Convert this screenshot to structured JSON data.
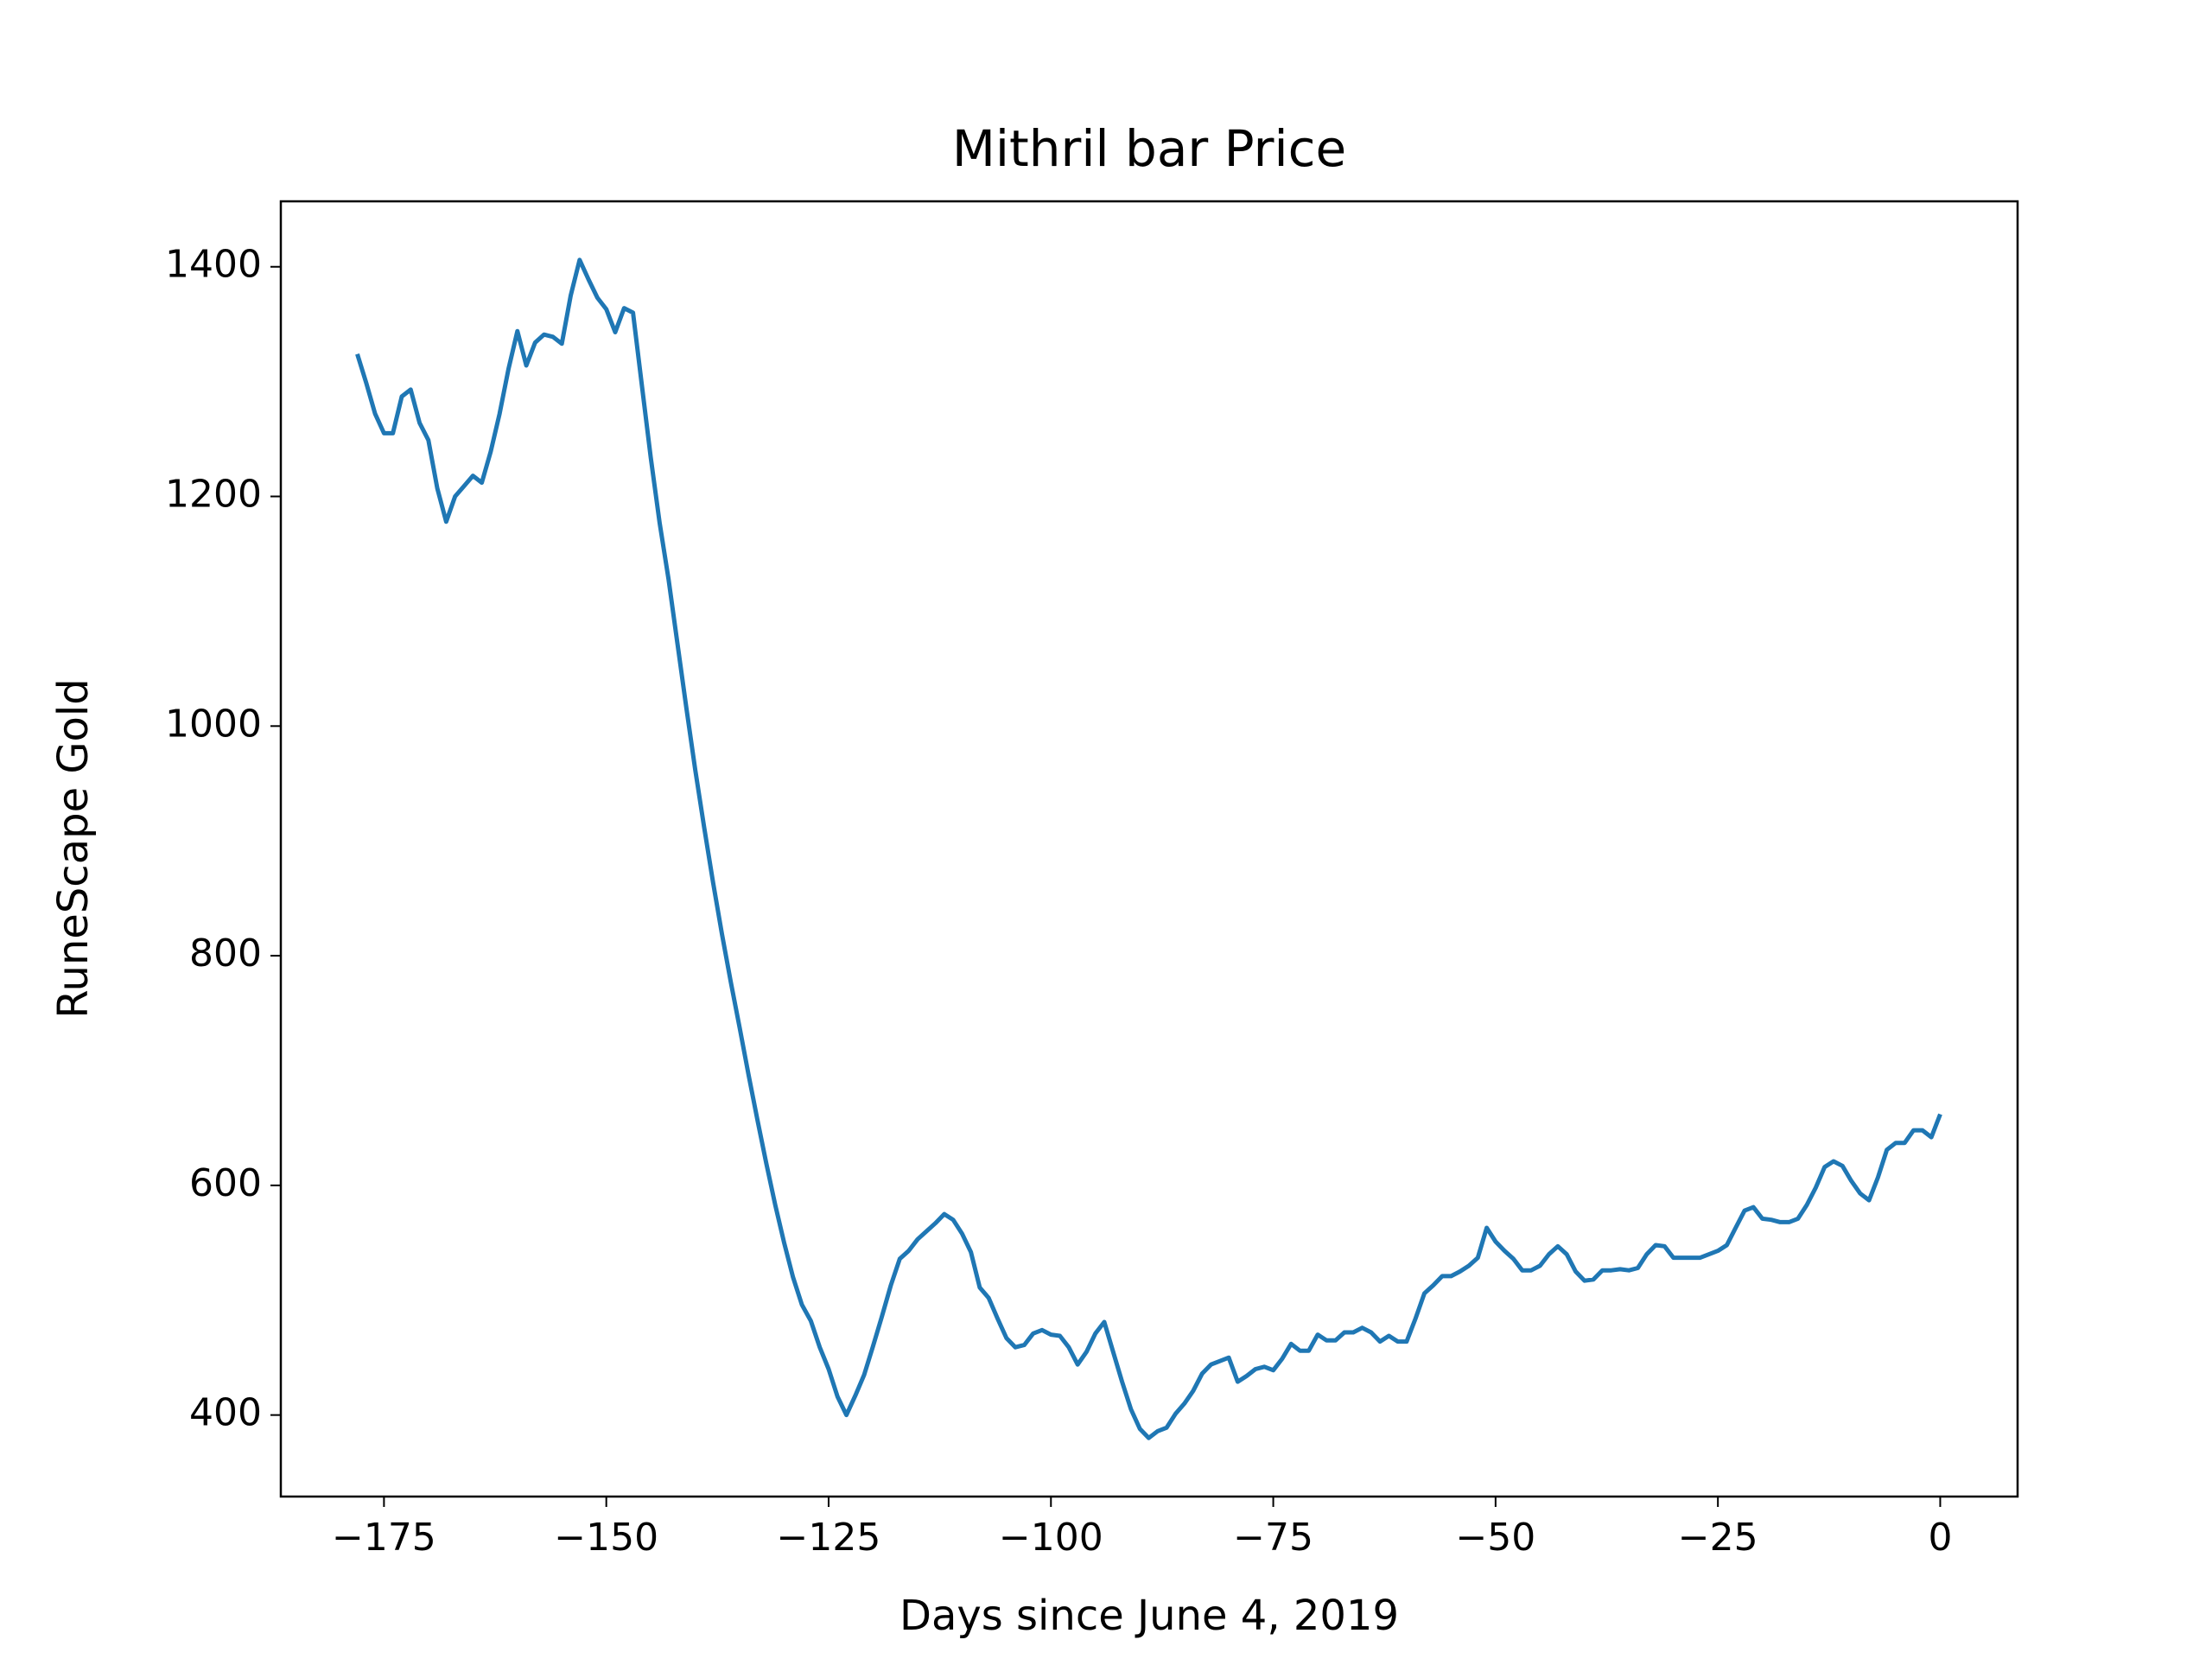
{
  "chart_data": {
    "type": "line",
    "title": "Mithril bar Price",
    "xlabel": "Days since June 4, 2019",
    "ylabel": "RuneScape Gold",
    "color": "#1f77b4",
    "x": [
      -178,
      -177,
      -176,
      -175,
      -174,
      -173,
      -172,
      -171,
      -170,
      -169,
      -168,
      -167,
      -166,
      -165,
      -164,
      -163,
      -162,
      -161,
      -160,
      -159,
      -158,
      -157,
      -156,
      -155,
      -154,
      -153,
      -152,
      -151,
      -150,
      -149,
      -148,
      -147,
      -146,
      -145,
      -144,
      -143,
      -142,
      -141,
      -140,
      -139,
      -138,
      -137,
      -136,
      -135,
      -134,
      -133,
      -132,
      -131,
      -130,
      -129,
      -128,
      -127,
      -126,
      -125,
      -124,
      -123,
      -122,
      -121,
      -120,
      -119,
      -118,
      -117,
      -116,
      -115,
      -114,
      -113,
      -112,
      -111,
      -110,
      -109,
      -108,
      -107,
      -106,
      -105,
      -104,
      -103,
      -102,
      -101,
      -100,
      -99,
      -98,
      -97,
      -96,
      -95,
      -94,
      -93,
      -92,
      -91,
      -90,
      -89,
      -88,
      -87,
      -86,
      -85,
      -84,
      -83,
      -82,
      -81,
      -80,
      -79,
      -78,
      -77,
      -76,
      -75,
      -74,
      -73,
      -72,
      -71,
      -70,
      -69,
      -68,
      -67,
      -66,
      -65,
      -64,
      -63,
      -62,
      -61,
      -60,
      -59,
      -58,
      -57,
      -56,
      -55,
      -54,
      -53,
      -52,
      -51,
      -50,
      -49,
      -48,
      -47,
      -46,
      -45,
      -44,
      -43,
      -42,
      -41,
      -40,
      -39,
      -38,
      -37,
      -36,
      -35,
      -34,
      -33,
      -32,
      -31,
      -30,
      -29,
      -28,
      -27,
      -26,
      -25,
      -24,
      -23,
      -22,
      -21,
      -20,
      -19,
      -18,
      -17,
      -16,
      -15,
      -14,
      -13,
      -12,
      -11,
      -10,
      -9,
      -8,
      -7,
      -6,
      -5,
      -4,
      -3,
      -2,
      -1,
      0
    ],
    "values": [
      1324,
      1299,
      1272,
      1255,
      1255,
      1287,
      1293,
      1264,
      1249,
      1207,
      1178,
      1200,
      1209,
      1218,
      1212,
      1239,
      1272,
      1311,
      1344,
      1314,
      1334,
      1341,
      1339,
      1333,
      1375,
      1406,
      1389,
      1373,
      1363,
      1343,
      1364,
      1360,
      1297,
      1234,
      1177,
      1128,
      1072,
      1016,
      962,
      912,
      864,
      819,
      777,
      737,
      696,
      657,
      619,
      583,
      550,
      520,
      496,
      482,
      459,
      440,
      416,
      400,
      417,
      435,
      460,
      486,
      513,
      536,
      543,
      553,
      560,
      567,
      575,
      570,
      558,
      542,
      511,
      502,
      484,
      467,
      459,
      461,
      471,
      474,
      470,
      469,
      459,
      444,
      455,
      471,
      481,
      455,
      429,
      405,
      388,
      380,
      386,
      389,
      401,
      410,
      421,
      436,
      444,
      447,
      450,
      429,
      434,
      440,
      442,
      439,
      449,
      462,
      456,
      456,
      470,
      465,
      465,
      472,
      472,
      476,
      472,
      464,
      469,
      464,
      464,
      484,
      506,
      513,
      521,
      521,
      525,
      530,
      537,
      563,
      551,
      543,
      536,
      526,
      526,
      530,
      540,
      547,
      540,
      525,
      517,
      518,
      526,
      526,
      527,
      526,
      528,
      540,
      548,
      547,
      537,
      537,
      537,
      537,
      540,
      543,
      548,
      563,
      578,
      581,
      571,
      570,
      568,
      568,
      571,
      583,
      598,
      616,
      621,
      617,
      604,
      593,
      587,
      607,
      631,
      637,
      637,
      648,
      648,
      642,
      662
    ],
    "xlim": [
      -186.6,
      8.7
    ],
    "ylim": [
      329,
      1457
    ],
    "xticks": [
      {
        "value": -175,
        "label": "−175"
      },
      {
        "value": -150,
        "label": "−150"
      },
      {
        "value": -125,
        "label": "−125"
      },
      {
        "value": -100,
        "label": "−100"
      },
      {
        "value": -75,
        "label": "−75"
      },
      {
        "value": -50,
        "label": "−50"
      },
      {
        "value": -25,
        "label": "−25"
      },
      0
    ],
    "yticks": [
      400,
      600,
      800,
      1000,
      1200,
      1400
    ]
  }
}
